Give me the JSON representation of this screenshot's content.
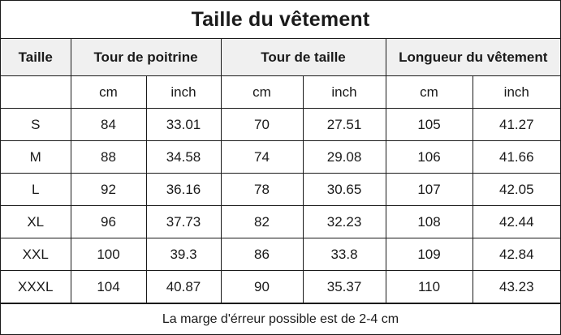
{
  "title": "Taille du vêtement",
  "headers": {
    "size": "Taille",
    "chest": "Tour de poitrine",
    "waist": "Tour de taille",
    "length": "Longueur du vêtement"
  },
  "units": [
    "cm",
    "inch",
    "cm",
    "inch",
    "cm",
    "inch"
  ],
  "rows": [
    [
      "S",
      "84",
      "33.01",
      "70",
      "27.51",
      "105",
      "41.27"
    ],
    [
      "M",
      "88",
      "34.58",
      "74",
      "29.08",
      "106",
      "41.66"
    ],
    [
      "L",
      "92",
      "36.16",
      "78",
      "30.65",
      "107",
      "42.05"
    ],
    [
      "XL",
      "96",
      "37.73",
      "82",
      "32.23",
      "108",
      "42.44"
    ],
    [
      "XXL",
      "100",
      "39.3",
      "86",
      "33.8",
      "109",
      "42.84"
    ],
    [
      "XXXL",
      "104",
      "40.87",
      "90",
      "35.37",
      "110",
      "43.23"
    ]
  ],
  "note": "La marge d'érreur possible est de 2-4 cm",
  "colors": {
    "header_bg": "#f0f0f0",
    "border": "#1a1a1a"
  }
}
